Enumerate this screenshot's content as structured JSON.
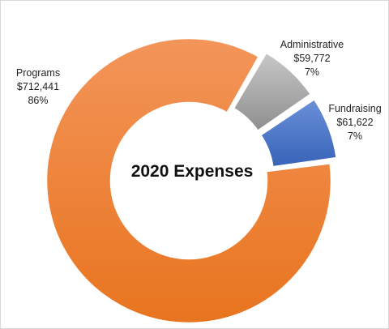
{
  "chart_data": {
    "type": "pie",
    "title": "2020 Expenses",
    "slices": [
      {
        "label": "Programs",
        "value": 712441,
        "value_text": "$712,441",
        "percent_text": "86%",
        "color": "#ED7D31"
      },
      {
        "label": "Administrative",
        "value": 59772,
        "value_text": "$59,772",
        "percent_text": "7%",
        "color": "#A5A5A5"
      },
      {
        "label": "Fundraising",
        "value": 61622,
        "value_text": "$61,622",
        "percent_text": "7%",
        "color": "#4472C4"
      }
    ],
    "donut": true,
    "legend": "none"
  }
}
